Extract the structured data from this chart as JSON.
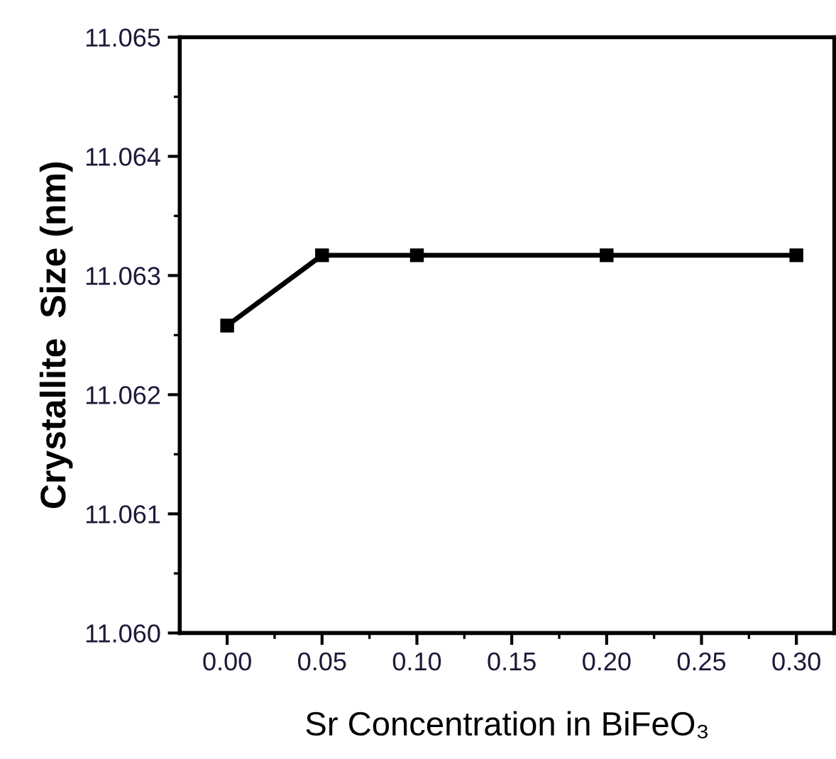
{
  "chart_data": {
    "type": "line",
    "xlabel": "Sr Concentration in BiFeO₃",
    "ylabel": "Crystallite  Size (nm)",
    "x": [
      0.0,
      0.05,
      0.1,
      0.2,
      0.3
    ],
    "series": [
      {
        "color": "#000000",
        "values": [
          11.06258,
          11.06317,
          11.06317,
          11.06317,
          11.06317
        ]
      }
    ],
    "marker": "square",
    "line_style": "solid",
    "grid": false,
    "legend": false,
    "xlim": [
      -0.025,
      0.32
    ],
    "xticks": [
      {
        "value": 0.0,
        "label": "0.00"
      },
      {
        "value": 0.05,
        "label": "0.05"
      },
      {
        "value": 0.1,
        "label": "0.10"
      },
      {
        "value": 0.15,
        "label": "0.15"
      },
      {
        "value": 0.2,
        "label": "0.20"
      },
      {
        "value": 0.25,
        "label": "0.25"
      },
      {
        "value": 0.3,
        "label": "0.30"
      }
    ],
    "ylim": [
      11.06,
      11.065
    ],
    "yticks": [
      {
        "value": 11.06,
        "label": "11.060"
      },
      {
        "value": 11.061,
        "label": "11.061"
      },
      {
        "value": 11.062,
        "label": "11.062"
      },
      {
        "value": 11.063,
        "label": "11.063"
      },
      {
        "value": 11.064,
        "label": "11.064"
      },
      {
        "value": 11.065,
        "label": "11.065"
      }
    ]
  }
}
